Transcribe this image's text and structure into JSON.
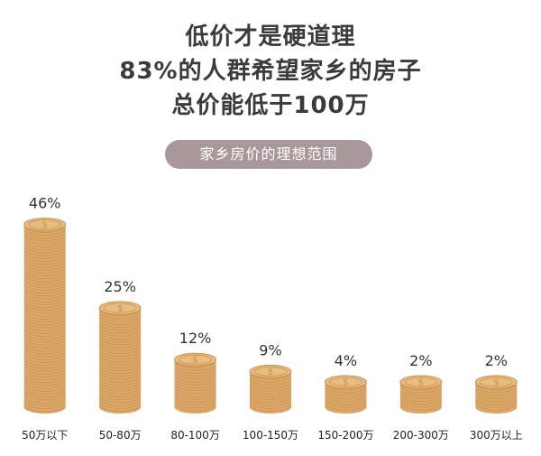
{
  "title_lines": [
    "低价才是硬道理",
    "83%的人群希望家乡的房子",
    "总价能低于100万"
  ],
  "subtitle_pill": "家乡房价的理想范围",
  "colors": {
    "coin_body": "#dba86a",
    "coin_top": "#e8bd82",
    "coin_rim": "#c9914e",
    "coin_line": "#c48a48",
    "pill_bg": "#a9989b"
  },
  "chart_data": {
    "type": "bar",
    "categories": [
      "50万以下",
      "50-80万",
      "80-100万",
      "100-150万",
      "150-200万",
      "200-300万",
      "300万以上"
    ],
    "values": [
      46,
      25,
      12,
      9,
      4,
      2,
      2
    ],
    "value_labels": [
      "46%",
      "25%",
      "12%",
      "9%",
      "4%",
      "2%",
      "2%"
    ],
    "title": "家乡房价的理想范围",
    "xlabel": "",
    "ylabel": "",
    "ylim": [
      0,
      50
    ],
    "grid": false,
    "legend": "none"
  }
}
